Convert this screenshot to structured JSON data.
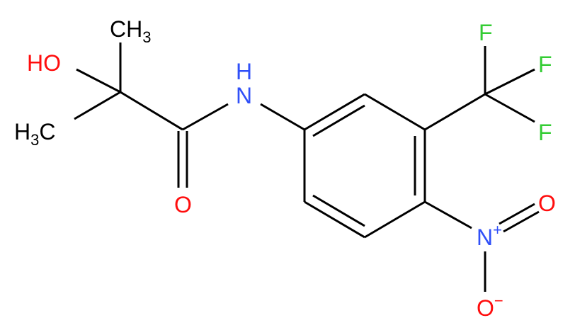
{
  "atoms": [
    [
      "CH",
      "3"
    ],
    [
      "HO"
    ],
    [
      "H",
      "3",
      "C"
    ],
    [
      "O"
    ],
    [
      "H"
    ],
    [
      "N"
    ],
    [
      "F"
    ],
    [
      "F"
    ],
    [
      "F"
    ],
    [
      "N",
      "+"
    ],
    [
      "O"
    ],
    [
      "O",
      "−"
    ]
  ]
}
